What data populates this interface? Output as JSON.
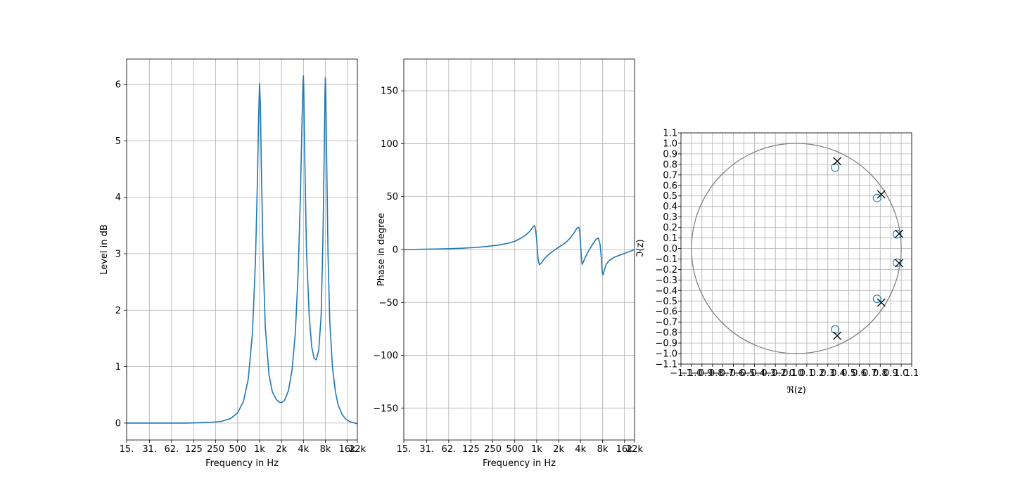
{
  "colors": {
    "line": "#1f77b4",
    "grid": "#b0b0b0",
    "axis": "#000000",
    "unit_circle": "#808080",
    "pole": "#000000",
    "zero": "#1f77b4"
  },
  "chart_data": [
    {
      "type": "line",
      "id": "magnitude",
      "xlabel": "Frequency in Hz",
      "ylabel": "Level in dB",
      "xscale": "log",
      "xlim": [
        15,
        22000
      ],
      "ylim": [
        -0.3,
        6.45
      ],
      "grid": true,
      "xticks": [
        {
          "v": 15,
          "label": "15."
        },
        {
          "v": 31,
          "label": "31."
        },
        {
          "v": 62,
          "label": "62."
        },
        {
          "v": 125,
          "label": "125"
        },
        {
          "v": 250,
          "label": "250"
        },
        {
          "v": 500,
          "label": "500"
        },
        {
          "v": 1000,
          "label": "1k"
        },
        {
          "v": 2000,
          "label": "2k"
        },
        {
          "v": 4000,
          "label": "4k"
        },
        {
          "v": 8000,
          "label": "8k"
        },
        {
          "v": 16000,
          "label": "16k"
        },
        {
          "v": 22000,
          "label": "22k"
        }
      ],
      "yticks": [
        {
          "v": 0,
          "label": "0"
        },
        {
          "v": 1,
          "label": "1"
        },
        {
          "v": 2,
          "label": "2"
        },
        {
          "v": 3,
          "label": "3"
        },
        {
          "v": 4,
          "label": "4"
        },
        {
          "v": 5,
          "label": "5"
        },
        {
          "v": 6,
          "label": "6"
        }
      ],
      "series": [
        {
          "x": [
            15,
            50,
            100,
            200,
            300,
            400,
            500,
            600,
            700,
            800,
            880,
            940,
            970,
            1000,
            1030,
            1060,
            1120,
            1200,
            1350,
            1500,
            1700,
            1850,
            2000,
            2200,
            2500,
            2800,
            3100,
            3400,
            3650,
            3850,
            3950,
            4000,
            4050,
            4150,
            4400,
            4800,
            5200,
            5600,
            6000,
            6500,
            7000,
            7400,
            7700,
            7900,
            8000,
            8100,
            8300,
            8700,
            9200,
            10000,
            11000,
            12000,
            13500,
            15000,
            17000,
            19000,
            20500,
            22000
          ],
          "y": [
            0.0,
            0.0,
            0.0,
            0.01,
            0.03,
            0.08,
            0.18,
            0.38,
            0.78,
            1.6,
            2.9,
            4.4,
            5.4,
            6.02,
            5.6,
            4.5,
            2.9,
            1.7,
            0.85,
            0.55,
            0.42,
            0.37,
            0.36,
            0.4,
            0.58,
            0.95,
            1.6,
            2.7,
            4.1,
            5.5,
            6.0,
            6.15,
            5.9,
            4.9,
            3.1,
            1.9,
            1.35,
            1.15,
            1.12,
            1.3,
            1.9,
            3.2,
            4.7,
            5.8,
            6.12,
            5.9,
            4.9,
            3.0,
            1.8,
            1.0,
            0.55,
            0.32,
            0.16,
            0.08,
            0.03,
            0.01,
            0.0,
            -0.01
          ]
        }
      ]
    },
    {
      "type": "line",
      "id": "phase",
      "xlabel": "Frequency in Hz",
      "ylabel": "Phase in degree",
      "xscale": "log",
      "xlim": [
        15,
        22000
      ],
      "ylim": [
        -180,
        180
      ],
      "grid": true,
      "xticks": [
        {
          "v": 15,
          "label": "15."
        },
        {
          "v": 31,
          "label": "31."
        },
        {
          "v": 62,
          "label": "62."
        },
        {
          "v": 125,
          "label": "125"
        },
        {
          "v": 250,
          "label": "250"
        },
        {
          "v": 500,
          "label": "500"
        },
        {
          "v": 1000,
          "label": "1k"
        },
        {
          "v": 2000,
          "label": "2k"
        },
        {
          "v": 4000,
          "label": "4k"
        },
        {
          "v": 8000,
          "label": "8k"
        },
        {
          "v": 16000,
          "label": "16k"
        },
        {
          "v": 22000,
          "label": "22k"
        }
      ],
      "yticks": [
        {
          "v": -150,
          "label": "−150"
        },
        {
          "v": -100,
          "label": "−100"
        },
        {
          "v": -50,
          "label": "−50"
        },
        {
          "v": 0,
          "label": "0"
        },
        {
          "v": 50,
          "label": "50"
        },
        {
          "v": 100,
          "label": "100"
        },
        {
          "v": 150,
          "label": "150"
        }
      ],
      "series": [
        {
          "x": [
            15,
            30,
            60,
            100,
            150,
            200,
            300,
            400,
            500,
            600,
            700,
            800,
            880,
            930,
            960,
            990,
            1020,
            1050,
            1090,
            1150,
            1300,
            1500,
            1800,
            2100,
            2500,
            2900,
            3300,
            3600,
            3800,
            3900,
            4000,
            4100,
            4200,
            4350,
            4600,
            5000,
            5500,
            6000,
            6500,
            7000,
            7400,
            7700,
            7900,
            8100,
            8300,
            8500,
            9000,
            10000,
            11500,
            13000,
            15000,
            17000,
            19500,
            22000
          ],
          "y": [
            0.0,
            0.3,
            0.7,
            1.3,
            2.0,
            2.8,
            4.2,
            5.8,
            7.8,
            10.5,
            13.5,
            17.0,
            21.0,
            22.5,
            20.0,
            12.0,
            0.0,
            -10.0,
            -14.5,
            -13.0,
            -8.0,
            -4.0,
            0.0,
            3.0,
            6.5,
            11.0,
            16.5,
            20.5,
            21.0,
            16.0,
            5.0,
            -7.0,
            -14.0,
            -12.0,
            -8.0,
            -3.0,
            2.0,
            6.0,
            9.5,
            11.0,
            5.0,
            -8.0,
            -20.0,
            -24.0,
            -22.0,
            -19.0,
            -14.0,
            -10.0,
            -7.5,
            -6.0,
            -4.5,
            -3.0,
            -1.5,
            0.0
          ]
        }
      ]
    },
    {
      "type": "scatter",
      "id": "pole-zero",
      "xlabel": "ℜ(z)",
      "ylabel": "ℑ(z)",
      "xlim": [
        -1.1,
        1.1
      ],
      "ylim": [
        -1.1,
        1.1
      ],
      "grid": true,
      "unit_circle": true,
      "ticks": [
        "−1.1",
        "−1.0",
        "−0.9",
        "−0.8",
        "−0.7",
        "−0.6",
        "−0.5",
        "−0.4",
        "−0.3",
        "−0.2",
        "−0.1",
        "0.0",
        "0.1",
        "0.2",
        "0.3",
        "0.4",
        "0.5",
        "0.6",
        "0.7",
        "0.8",
        "0.9",
        "1.0",
        "1.1"
      ],
      "tick_values": [
        -1.1,
        -1.0,
        -0.9,
        -0.8,
        -0.7,
        -0.6,
        -0.5,
        -0.4,
        -0.3,
        -0.2,
        -0.1,
        0.0,
        0.1,
        0.2,
        0.3,
        0.4,
        0.5,
        0.6,
        0.7,
        0.8,
        0.9,
        1.0,
        1.1
      ],
      "zeros": [
        [
          0.37,
          0.77
        ],
        [
          0.37,
          -0.77
        ],
        [
          0.77,
          0.48
        ],
        [
          0.77,
          -0.48
        ],
        [
          0.96,
          0.135
        ],
        [
          0.96,
          -0.135
        ]
      ],
      "poles": [
        [
          0.39,
          0.83
        ],
        [
          0.39,
          -0.83
        ],
        [
          0.81,
          0.515
        ],
        [
          0.81,
          -0.515
        ],
        [
          0.98,
          0.14
        ],
        [
          0.98,
          -0.14
        ]
      ]
    }
  ]
}
